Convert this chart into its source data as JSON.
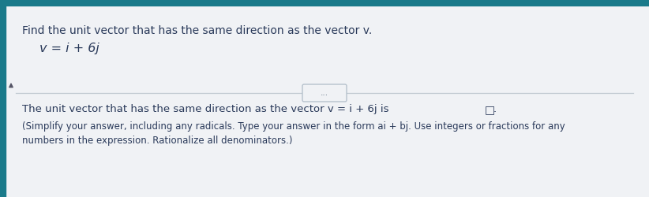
{
  "bg_top_bar": "#1a7a8a",
  "bg_main": "#f0f2f5",
  "bg_lower": "#f0f2f5",
  "left_bar_color": "#1a7a8a",
  "divider_color": "#c0c8d0",
  "btn_face": "#f0f2f5",
  "btn_edge": "#b0bcc8",
  "text_color": "#2a3a5a",
  "line1": "Find the unit vector that has the same direction as the vector v.",
  "line2_prefix": "v = i + 6j",
  "divider_dots": "...",
  "answer_line": "The unit vector that has the same direction as the vector v = i + 6j is",
  "note_line1": "(Simplify your answer, including any radicals. Type your answer in the form ai + bj. Use integers or fractions for any",
  "note_line2": "numbers in the expression. Rationalize all denominators.)",
  "fig_width": 8.22,
  "fig_height": 2.5,
  "dpi": 100
}
